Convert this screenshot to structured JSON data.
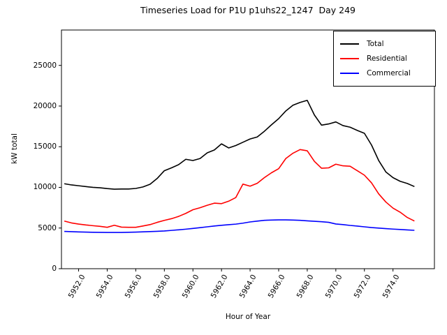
{
  "chart_data": {
    "type": "line",
    "title": "Timeseries Load for P1U p1uhs22_1247  Day 249",
    "xlabel": "Hour of Year",
    "ylabel": "kW total",
    "grid": false,
    "legend_position": "upper right",
    "xlim": [
      5950.8,
      5976.9
    ],
    "ylim": [
      0,
      29350
    ],
    "x_ticks": [
      5952,
      5954,
      5956,
      5958,
      5960,
      5962,
      5964,
      5966,
      5968,
      5970,
      5972,
      5974
    ],
    "x_tick_labels": [
      "5952.0",
      "5954.0",
      "5956.0",
      "5958.0",
      "5960.0",
      "5962.0",
      "5964.0",
      "5966.0",
      "5968.0",
      "5970.0",
      "5972.0",
      "5974.0"
    ],
    "y_ticks": [
      0,
      5000,
      10000,
      15000,
      20000,
      25000
    ],
    "y_tick_labels": [
      "0",
      "5000",
      "10000",
      "15000",
      "20000",
      "25000"
    ],
    "x": [
      5951.0,
      5951.5,
      5952.0,
      5952.5,
      5953.0,
      5953.5,
      5954.0,
      5954.5,
      5955.0,
      5955.5,
      5956.0,
      5956.5,
      5957.0,
      5957.5,
      5958.0,
      5958.5,
      5959.0,
      5959.5,
      5960.0,
      5960.5,
      5961.0,
      5961.5,
      5962.0,
      5962.5,
      5963.0,
      5963.5,
      5964.0,
      5964.5,
      5965.0,
      5965.5,
      5966.0,
      5966.5,
      5967.0,
      5967.5,
      5968.0,
      5968.5,
      5969.0,
      5969.5,
      5970.0,
      5970.5,
      5971.0,
      5971.5,
      5972.0,
      5972.5,
      5973.0,
      5973.5,
      5974.0,
      5974.5,
      5975.0,
      5975.5
    ],
    "series": [
      {
        "name": "Total",
        "color": "#000000",
        "values": [
          10450,
          10300,
          10200,
          10100,
          10000,
          9950,
          9850,
          9780,
          9800,
          9800,
          9870,
          10050,
          10380,
          11100,
          12050,
          12400,
          12800,
          13450,
          13300,
          13550,
          14250,
          14600,
          15350,
          14850,
          15150,
          15550,
          15950,
          16200,
          16900,
          17700,
          18450,
          19400,
          20100,
          20450,
          20700,
          18900,
          17650,
          17800,
          18050,
          17600,
          17400,
          17000,
          16650,
          15200,
          13300,
          11900,
          11200,
          10750,
          10480,
          10100
        ]
      },
      {
        "name": "Residential",
        "color": "#ff0000",
        "values": [
          5860,
          5630,
          5490,
          5380,
          5290,
          5210,
          5090,
          5340,
          5110,
          5090,
          5090,
          5250,
          5420,
          5700,
          5940,
          6150,
          6430,
          6800,
          7250,
          7500,
          7800,
          8060,
          8000,
          8300,
          8750,
          10400,
          10150,
          10500,
          11200,
          11800,
          12300,
          13550,
          14200,
          14650,
          14500,
          13200,
          12350,
          12400,
          12850,
          12650,
          12600,
          12050,
          11500,
          10550,
          9200,
          8200,
          7450,
          6950,
          6300,
          5860
        ]
      },
      {
        "name": "Commercial",
        "color": "#0000ff",
        "values": [
          4590,
          4550,
          4520,
          4500,
          4480,
          4470,
          4460,
          4460,
          4460,
          4480,
          4500,
          4530,
          4560,
          4600,
          4640,
          4710,
          4780,
          4860,
          4950,
          5050,
          5150,
          5250,
          5340,
          5410,
          5480,
          5600,
          5750,
          5850,
          5950,
          5980,
          6000,
          6000,
          5980,
          5950,
          5880,
          5830,
          5780,
          5700,
          5500,
          5420,
          5320,
          5240,
          5150,
          5060,
          4990,
          4930,
          4870,
          4820,
          4770,
          4720
        ]
      }
    ]
  }
}
